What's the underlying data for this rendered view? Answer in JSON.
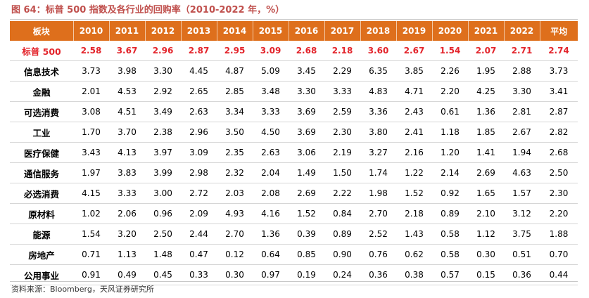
{
  "title": "图 64：标普 500 指数及各行业的回购率（2010-2022 年，%）",
  "headers": [
    "板块",
    "2010",
    "2011",
    "2012",
    "2013",
    "2014",
    "2015",
    "2016",
    "2017",
    "2018",
    "2019",
    "2020",
    "2021",
    "2022",
    "平均"
  ],
  "rows": [
    {
      "name": "标普 500",
      "values": [
        "2.58",
        "3.67",
        "2.96",
        "2.87",
        "2.95",
        "3.09",
        "2.68",
        "2.18",
        "3.60",
        "2.67",
        "1.54",
        "2.07",
        "2.71",
        "2.74"
      ]
    },
    {
      "name": "信息技术",
      "values": [
        "3.73",
        "3.98",
        "3.30",
        "4.45",
        "4.87",
        "5.09",
        "3.45",
        "2.29",
        "6.35",
        "3.85",
        "2.26",
        "1.95",
        "2.88",
        "3.73"
      ]
    },
    {
      "name": "金融",
      "values": [
        "2.01",
        "4.53",
        "2.92",
        "2.65",
        "2.85",
        "3.48",
        "3.30",
        "3.33",
        "4.83",
        "4.71",
        "2.20",
        "4.25",
        "3.30",
        "3.41"
      ]
    },
    {
      "name": "可选消费",
      "values": [
        "3.08",
        "4.51",
        "3.49",
        "2.63",
        "3.34",
        "3.33",
        "3.69",
        "2.59",
        "3.36",
        "2.43",
        "0.61",
        "1.36",
        "2.81",
        "2.87"
      ]
    },
    {
      "name": "工业",
      "values": [
        "1.70",
        "3.70",
        "2.38",
        "2.96",
        "3.50",
        "4.50",
        "3.69",
        "2.30",
        "3.80",
        "2.41",
        "1.18",
        "1.85",
        "2.67",
        "2.82"
      ]
    },
    {
      "name": "医疗保健",
      "values": [
        "3.43",
        "4.13",
        "3.97",
        "3.09",
        "2.35",
        "2.63",
        "3.06",
        "2.19",
        "3.27",
        "2.16",
        "1.20",
        "1.41",
        "1.94",
        "2.68"
      ]
    },
    {
      "name": "通信服务",
      "values": [
        "1.97",
        "3.83",
        "3.99",
        "2.98",
        "2.32",
        "2.04",
        "1.49",
        "1.50",
        "1.74",
        "1.22",
        "2.14",
        "2.69",
        "4.63",
        "2.50"
      ]
    },
    {
      "name": "必选消费",
      "values": [
        "4.15",
        "3.33",
        "3.00",
        "2.72",
        "2.03",
        "2.08",
        "2.69",
        "2.22",
        "1.98",
        "1.52",
        "0.92",
        "1.65",
        "1.57",
        "2.30"
      ]
    },
    {
      "name": "原材料",
      "values": [
        "1.02",
        "2.06",
        "0.96",
        "2.09",
        "4.93",
        "4.16",
        "1.52",
        "0.84",
        "2.70",
        "2.18",
        "0.89",
        "2.10",
        "3.12",
        "2.20"
      ]
    },
    {
      "name": "能源",
      "values": [
        "1.54",
        "3.20",
        "2.50",
        "2.44",
        "2.70",
        "1.36",
        "0.39",
        "0.89",
        "2.52",
        "1.43",
        "0.58",
        "1.12",
        "3.75",
        "1.88"
      ]
    },
    {
      "name": "房地产",
      "values": [
        "0.71",
        "1.13",
        "1.48",
        "0.47",
        "0.12",
        "0.64",
        "0.85",
        "0.90",
        "0.76",
        "0.62",
        "0.58",
        "0.30",
        "0.51",
        "0.70"
      ]
    },
    {
      "name": "公用事业",
      "values": [
        "0.91",
        "0.49",
        "0.45",
        "0.33",
        "0.30",
        "0.97",
        "0.19",
        "0.24",
        "0.36",
        "0.38",
        "0.57",
        "0.15",
        "0.36",
        "0.44"
      ]
    }
  ],
  "source": "资料来源：Bloomberg，天风证券研究所",
  "colors": {
    "header_bg": "#de6f1c",
    "highlight_text": "#e3242b",
    "title": "#c0504d"
  }
}
